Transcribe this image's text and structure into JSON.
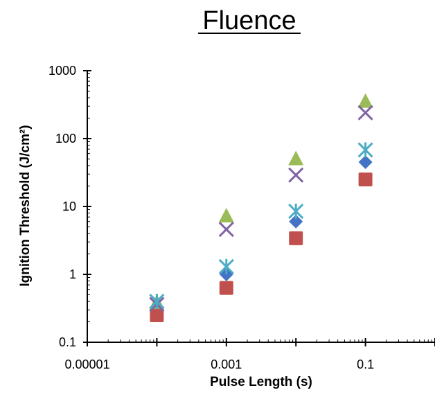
{
  "chart_data": {
    "type": "scatter",
    "title": "Fluence",
    "xlabel": "Pulse Length (s)",
    "ylabel": "Ignition Threshold (J/cm²)",
    "x_scale": "log",
    "y_scale": "log",
    "xlim": [
      1e-05,
      1
    ],
    "ylim": [
      0.1,
      1000
    ],
    "x_tick_labels": [
      "0.00001",
      "0.001",
      "0.1"
    ],
    "x_tick_values": [
      1e-05,
      0.001,
      0.1
    ],
    "y_tick_labels": [
      "1000",
      "100",
      "10",
      "1",
      "0.1"
    ],
    "y_tick_values": [
      1000,
      100,
      10,
      1,
      0.1
    ],
    "grid": false,
    "legend": "none",
    "series": [
      {
        "marker": "diamond",
        "color": "#4472C4",
        "x": [
          0.0001,
          0.001,
          0.01,
          0.1
        ],
        "y": [
          0.33,
          1.0,
          6.0,
          45
        ]
      },
      {
        "marker": "square",
        "color": "#C0504D",
        "x": [
          0.0001,
          0.001,
          0.01,
          0.1
        ],
        "y": [
          0.25,
          0.63,
          3.4,
          25
        ]
      },
      {
        "marker": "triangle",
        "color": "#9BBB59",
        "x": [
          0.0001,
          0.001,
          0.01,
          0.1
        ],
        "y": [
          0.38,
          7.2,
          50,
          350
        ]
      },
      {
        "marker": "x",
        "color": "#8064A2",
        "x": [
          0.0001,
          0.001,
          0.01,
          0.1
        ],
        "y": [
          0.36,
          4.6,
          29,
          240
        ]
      },
      {
        "marker": "asterisk",
        "color": "#4BACC6",
        "x": [
          0.0001,
          0.001,
          0.01,
          0.1
        ],
        "y": [
          0.4,
          1.3,
          8.5,
          68
        ]
      }
    ]
  }
}
